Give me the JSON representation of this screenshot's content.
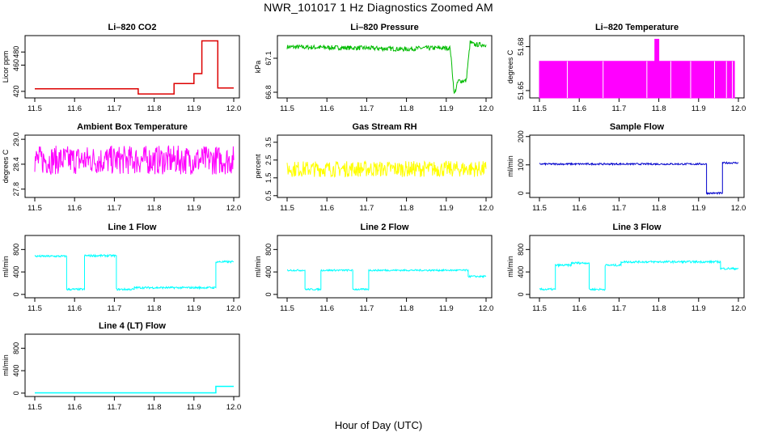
{
  "page": {
    "title": "NWR_101017  1 Hz Diagnostics Zoomed AM",
    "xlabel": "Hour of Day (UTC)"
  },
  "chart_data": [
    {
      "id": "co2",
      "type": "line",
      "title": "Li–820 CO2",
      "ylabel": "Licor ppm",
      "color": "#dd0000",
      "noise": 0,
      "xlim": [
        11.5,
        12.0
      ],
      "ylim": [
        410,
        505
      ],
      "yticks": [
        "420",
        "460",
        "480"
      ],
      "ytick_values": [
        420,
        460,
        480
      ],
      "xticks": [
        "11.5",
        "11.6",
        "11.7",
        "11.8",
        "11.9",
        "12.0"
      ],
      "series": [
        {
          "x": [
            11.5,
            11.76,
            11.76,
            11.85,
            11.85,
            11.9,
            11.9,
            11.92,
            11.92,
            11.96,
            11.96,
            12.0
          ],
          "y": [
            424,
            424,
            416,
            416,
            432,
            432,
            447,
            447,
            497,
            497,
            425,
            425
          ]
        }
      ]
    },
    {
      "id": "pressure",
      "type": "line",
      "title": "Li–820 Pressure",
      "ylabel": "kPa",
      "color": "#00bb00",
      "noise": 0.02,
      "xlim": [
        11.5,
        12.0
      ],
      "ylim": [
        66.75,
        67.3
      ],
      "yticks": [
        "66.8",
        "67.1"
      ],
      "ytick_values": [
        66.8,
        67.1
      ],
      "xticks": [
        "11.5",
        "11.6",
        "11.7",
        "11.8",
        "11.9",
        "12.0"
      ],
      "series": [
        {
          "x": [
            11.5,
            11.7,
            11.8,
            11.84,
            11.91,
            11.92,
            11.93,
            11.95,
            11.96,
            11.97,
            12.0
          ],
          "y": [
            67.2,
            67.19,
            67.18,
            67.19,
            67.19,
            66.78,
            66.9,
            66.9,
            67.24,
            67.22,
            67.22
          ]
        }
      ]
    },
    {
      "id": "licor-temp",
      "type": "area",
      "title": "Li–820 Temperature",
      "ylabel": "degrees C",
      "color": "#ff00ff",
      "noise": 0,
      "xlim": [
        11.5,
        12.0
      ],
      "ylim": [
        51.645,
        51.6875
      ],
      "yticks": [
        "51.65",
        "51.68"
      ],
      "ytick_values": [
        51.65,
        51.68
      ],
      "xticks": [
        "11.5",
        "11.6",
        "11.7",
        "11.8",
        "11.9",
        "12.0"
      ],
      "series": [
        {
          "x": [
            11.5,
            11.79,
            11.79,
            11.8,
            11.8,
            11.99
          ],
          "y": [
            51.67,
            51.67,
            51.685,
            51.685,
            51.67,
            51.67
          ],
          "base": 51.645
        }
      ]
    },
    {
      "id": "box-temp",
      "type": "line",
      "title": "Ambient Box Temperature",
      "ylabel": "degrees C",
      "color": "#ff00ff",
      "noise": 0.35,
      "xlim": [
        11.5,
        12.0
      ],
      "ylim": [
        27.6,
        29.1
      ],
      "yticks": [
        "27.8",
        "28.4",
        "29.0"
      ],
      "ytick_values": [
        27.8,
        28.4,
        29.0
      ],
      "xticks": [
        "11.5",
        "11.6",
        "11.7",
        "11.8",
        "11.9",
        "12.0"
      ],
      "series": [
        {
          "x": [
            11.5,
            12.0
          ],
          "y": [
            28.5,
            28.5
          ]
        }
      ]
    },
    {
      "id": "rh",
      "type": "line",
      "title": "Gas Stream RH",
      "ylabel": "percent",
      "color": "#ffff00",
      "noise": 0.45,
      "xlim": [
        11.5,
        12.0
      ],
      "ylim": [
        0.4,
        3.9
      ],
      "yticks": [
        "0.5",
        "1.5",
        "2.5",
        "3.5"
      ],
      "ytick_values": [
        0.5,
        1.5,
        2.5,
        3.5
      ],
      "xticks": [
        "11.5",
        "11.6",
        "11.7",
        "11.8",
        "11.9",
        "12.0"
      ],
      "series": [
        {
          "x": [
            11.5,
            12.0
          ],
          "y": [
            2.0,
            2.0
          ]
        }
      ]
    },
    {
      "id": "sample-flow",
      "type": "line",
      "title": "Sample Flow",
      "ylabel": "ml/min",
      "color": "#0000cc",
      "noise": 3,
      "xlim": [
        11.5,
        12.0
      ],
      "ylim": [
        -15,
        205
      ],
      "yticks": [
        "0",
        "100",
        "200"
      ],
      "ytick_values": [
        0,
        100,
        200
      ],
      "xticks": [
        "11.5",
        "11.6",
        "11.7",
        "11.8",
        "11.9",
        "12.0"
      ],
      "series": [
        {
          "x": [
            11.5,
            11.92,
            11.92,
            11.96,
            11.96,
            12.0
          ],
          "y": [
            103,
            103,
            0,
            0,
            107,
            107
          ]
        }
      ]
    },
    {
      "id": "line1",
      "type": "line",
      "title": "Line 1 Flow",
      "ylabel": "ml/min",
      "color": "#00ffff",
      "noise": 18,
      "xlim": [
        11.5,
        12.0
      ],
      "ylim": [
        -60,
        1050
      ],
      "yticks": [
        "0",
        "400",
        "800"
      ],
      "ytick_values": [
        0,
        400,
        800
      ],
      "xticks": [
        "11.5",
        "11.6",
        "11.7",
        "11.8",
        "11.9",
        "12.0"
      ],
      "series": [
        {
          "x": [
            11.5,
            11.58,
            11.58,
            11.625,
            11.625,
            11.705,
            11.705,
            11.75,
            11.75,
            11.955,
            11.955,
            12.0
          ],
          "y": [
            680,
            680,
            90,
            90,
            690,
            690,
            90,
            90,
            120,
            120,
            580,
            580
          ]
        }
      ]
    },
    {
      "id": "line2",
      "type": "line",
      "title": "Line 2 Flow",
      "ylabel": "ml/min",
      "color": "#00ffff",
      "noise": 15,
      "xlim": [
        11.5,
        12.0
      ],
      "ylim": [
        -60,
        1050
      ],
      "yticks": [
        "0",
        "400",
        "800"
      ],
      "ytick_values": [
        0,
        400,
        800
      ],
      "xticks": [
        "11.5",
        "11.6",
        "11.7",
        "11.8",
        "11.9",
        "12.0"
      ],
      "series": [
        {
          "x": [
            11.5,
            11.545,
            11.545,
            11.585,
            11.585,
            11.665,
            11.665,
            11.705,
            11.705,
            11.955,
            11.955,
            12.0
          ],
          "y": [
            430,
            430,
            90,
            90,
            430,
            430,
            90,
            90,
            430,
            430,
            320,
            320
          ]
        }
      ]
    },
    {
      "id": "line3",
      "type": "line",
      "title": "Line 3 Flow",
      "ylabel": "ml/min",
      "color": "#00ffff",
      "noise": 18,
      "xlim": [
        11.5,
        12.0
      ],
      "ylim": [
        -60,
        1050
      ],
      "yticks": [
        "0",
        "400",
        "800"
      ],
      "ytick_values": [
        0,
        400,
        800
      ],
      "xticks": [
        "11.5",
        "11.6",
        "11.7",
        "11.8",
        "11.9",
        "12.0"
      ],
      "series": [
        {
          "x": [
            11.5,
            11.54,
            11.54,
            11.58,
            11.58,
            11.625,
            11.625,
            11.665,
            11.665,
            11.705,
            11.705,
            11.955,
            11.955,
            12.0
          ],
          "y": [
            90,
            90,
            520,
            520,
            560,
            560,
            90,
            90,
            520,
            520,
            580,
            580,
            460,
            460
          ]
        }
      ]
    },
    {
      "id": "line4",
      "type": "line",
      "title": "Line 4 (LT) Flow",
      "ylabel": "ml/min",
      "color": "#00ffff",
      "noise": 0,
      "xlim": [
        11.5,
        12.0
      ],
      "ylim": [
        -60,
        1050
      ],
      "yticks": [
        "0",
        "400",
        "800"
      ],
      "ytick_values": [
        0,
        400,
        800
      ],
      "xticks": [
        "11.5",
        "11.6",
        "11.7",
        "11.8",
        "11.9",
        "12.0"
      ],
      "series": [
        {
          "x": [
            11.5,
            11.955,
            11.955,
            12.0
          ],
          "y": [
            5,
            5,
            120,
            120
          ]
        }
      ]
    }
  ]
}
